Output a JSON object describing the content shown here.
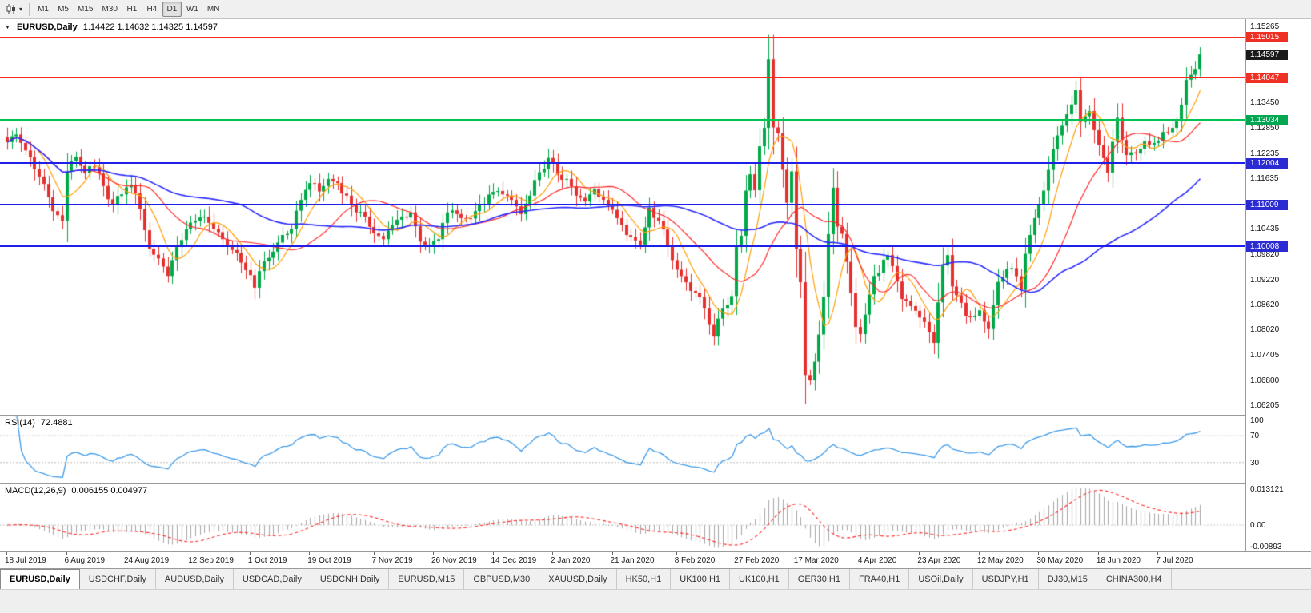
{
  "toolbar": {
    "chart_type_icon": "candlestick-chart",
    "dropdown_icon": "▾",
    "timeframes": [
      "M1",
      "M5",
      "M15",
      "M30",
      "H1",
      "H4",
      "D1",
      "W1",
      "MN"
    ],
    "active_timeframe": "D1"
  },
  "main_chart": {
    "collapse_icon": "▼",
    "title": {
      "symbol": "EURUSD,Daily",
      "ohlc": "1.14422 1.14632 1.14325 1.14597",
      "open": "1.14422",
      "high": "1.14632",
      "low": "1.14325",
      "close": "1.14597"
    },
    "price_scale": {
      "min": 1.0598,
      "max": 1.1544,
      "labels": [
        "1.15265",
        "1.13450",
        "1.12850",
        "1.12235",
        "1.11635",
        "1.10435",
        "1.09820",
        "1.09220",
        "1.08620",
        "1.08020",
        "1.07405",
        "1.06800",
        "1.06205"
      ],
      "badges": [
        {
          "value": "1.15015",
          "price": 1.15015,
          "color": "#ee3124"
        },
        {
          "value": "1.14597",
          "price": 1.14597,
          "color": "#1a1a1a"
        },
        {
          "value": "1.14047",
          "price": 1.14047,
          "color": "#ee3124"
        },
        {
          "value": "1.13034",
          "price": 1.13034,
          "color": "#00a651"
        },
        {
          "value": "1.12004",
          "price": 1.12004,
          "color": "#2b2bd4"
        },
        {
          "value": "1.11009",
          "price": 1.11009,
          "color": "#2b2bd4"
        },
        {
          "value": "1.10008",
          "price": 1.10008,
          "color": "#2b2bd4"
        }
      ]
    },
    "hlines": [
      {
        "price": 1.15015,
        "color": "#ff2b1e",
        "thickness": 1
      },
      {
        "price": 1.14047,
        "color": "#ff2b1e",
        "thickness": 2
      },
      {
        "price": 1.13034,
        "color": "#00c353",
        "thickness": 2
      },
      {
        "price": 1.12004,
        "color": "#1f1fe8",
        "thickness": 2
      },
      {
        "price": 1.11009,
        "color": "#1f1fe8",
        "thickness": 2
      },
      {
        "price": 1.10008,
        "color": "#1f1fe8",
        "thickness": 2
      }
    ]
  },
  "chart_data": {
    "type": "candlestick",
    "symbol": "EURUSD",
    "timeframe": "Daily",
    "bars": 261,
    "up_color": "#00a847",
    "down_color": "#e53030",
    "close_anchors": [
      [
        0,
        1.125
      ],
      [
        2,
        1.1268
      ],
      [
        4,
        1.123
      ],
      [
        6,
        1.1185
      ],
      [
        8,
        1.115
      ],
      [
        10,
        1.1085
      ],
      [
        12,
        1.1062
      ],
      [
        13,
        1.118
      ],
      [
        15,
        1.1215
      ],
      [
        17,
        1.1175
      ],
      [
        19,
        1.119
      ],
      [
        21,
        1.1145
      ],
      [
        23,
        1.11
      ],
      [
        25,
        1.1125
      ],
      [
        27,
        1.1148
      ],
      [
        29,
        1.109
      ],
      [
        31,
        1.0995
      ],
      [
        33,
        1.0972
      ],
      [
        35,
        1.093
      ],
      [
        37,
        1.1
      ],
      [
        39,
        1.1042
      ],
      [
        41,
        1.1062
      ],
      [
        43,
        1.1072
      ],
      [
        45,
        1.1042
      ],
      [
        47,
        1.1018
      ],
      [
        49,
        1.0992
      ],
      [
        51,
        1.0962
      ],
      [
        53,
        1.0932
      ],
      [
        54,
        1.0902
      ],
      [
        56,
        1.0965
      ],
      [
        58,
        1.0988
      ],
      [
        60,
        1.1028
      ],
      [
        62,
        1.1042
      ],
      [
        64,
        1.1112
      ],
      [
        66,
        1.1152
      ],
      [
        68,
        1.1132
      ],
      [
        70,
        1.1162
      ],
      [
        72,
        1.1152
      ],
      [
        74,
        1.1122
      ],
      [
        76,
        1.1082
      ],
      [
        78,
        1.1072
      ],
      [
        80,
        1.1032
      ],
      [
        82,
        1.1018
      ],
      [
        84,
        1.1052
      ],
      [
        86,
        1.1072
      ],
      [
        88,
        1.1082
      ],
      [
        90,
        1.1012
      ],
      [
        92,
        1.1005
      ],
      [
        94,
        1.1018
      ],
      [
        96,
        1.1082
      ],
      [
        98,
        1.1078
      ],
      [
        100,
        1.1068
      ],
      [
        102,
        1.1085
      ],
      [
        104,
        1.1102
      ],
      [
        106,
        1.1131
      ],
      [
        108,
        1.1125
      ],
      [
        110,
        1.1112
      ],
      [
        112,
        1.1078
      ],
      [
        114,
        1.1122
      ],
      [
        116,
        1.1178
      ],
      [
        118,
        1.1212
      ],
      [
        120,
        1.1172
      ],
      [
        122,
        1.1162
      ],
      [
        124,
        1.1122
      ],
      [
        126,
        1.1108
      ],
      [
        128,
        1.1138
      ],
      [
        130,
        1.1112
      ],
      [
        132,
        1.1088
      ],
      [
        134,
        1.1052
      ],
      [
        136,
        1.1023
      ],
      [
        138,
        1.1005
      ],
      [
        140,
        1.1093
      ],
      [
        142,
        1.1062
      ],
      [
        144,
        1.1002
      ],
      [
        146,
        1.0945
      ],
      [
        148,
        1.0915
      ],
      [
        150,
        1.089
      ],
      [
        152,
        1.0852
      ],
      [
        154,
        1.0785
      ],
      [
        156,
        1.0852
      ],
      [
        158,
        1.0882
      ],
      [
        159,
        1.1
      ],
      [
        160,
        1.1026
      ],
      [
        161,
        1.1134
      ],
      [
        162,
        1.1173
      ],
      [
        163,
        1.1135
      ],
      [
        164,
        1.124
      ],
      [
        165,
        1.1284
      ],
      [
        166,
        1.1448
      ],
      [
        167,
        1.1285
      ],
      [
        168,
        1.1271
      ],
      [
        169,
        1.1184
      ],
      [
        170,
        1.1105
      ],
      [
        171,
        1.118
      ],
      [
        172,
        1.0995
      ],
      [
        173,
        1.0915
      ],
      [
        174,
        1.0693
      ],
      [
        175,
        1.068
      ],
      [
        176,
        1.0725
      ],
      [
        177,
        1.079
      ],
      [
        178,
        1.088
      ],
      [
        179,
        1.103
      ],
      [
        180,
        1.1141
      ],
      [
        181,
        1.1048
      ],
      [
        182,
        1.1031
      ],
      [
        183,
        1.0964
      ],
      [
        185,
        1.0808
      ],
      [
        186,
        1.0791
      ],
      [
        189,
        1.093
      ],
      [
        192,
        1.098
      ],
      [
        195,
        1.0875
      ],
      [
        197,
        1.0858
      ],
      [
        200,
        1.082
      ],
      [
        202,
        1.077
      ],
      [
        204,
        1.0955
      ],
      [
        205,
        1.098
      ],
      [
        206,
        1.0905
      ],
      [
        209,
        1.0834
      ],
      [
        212,
        1.0848
      ],
      [
        214,
        1.0803
      ],
      [
        216,
        1.0916
      ],
      [
        219,
        1.0949
      ],
      [
        221,
        1.0897
      ],
      [
        222,
        1.0983
      ],
      [
        225,
        1.1101
      ],
      [
        226,
        1.1134
      ],
      [
        228,
        1.1233
      ],
      [
        230,
        1.1289
      ],
      [
        232,
        1.134
      ],
      [
        233,
        1.1374
      ],
      [
        234,
        1.1298
      ],
      [
        236,
        1.1324
      ],
      [
        238,
        1.1243
      ],
      [
        240,
        1.1177
      ],
      [
        242,
        1.1308
      ],
      [
        244,
        1.1219
      ],
      [
        247,
        1.1234
      ],
      [
        248,
        1.1252
      ],
      [
        250,
        1.1248
      ],
      [
        252,
        1.1274
      ],
      [
        254,
        1.1284
      ],
      [
        255,
        1.13
      ],
      [
        257,
        1.1399
      ],
      [
        258,
        1.1411
      ],
      [
        259,
        1.1425
      ],
      [
        260,
        1.14597
      ]
    ],
    "moving_averages": [
      {
        "name": "ma-fast",
        "period": 7,
        "color": "#ff9d00"
      },
      {
        "name": "ma-medium",
        "period": 19,
        "color": "#ff2a2a"
      },
      {
        "name": "ma-slow",
        "period": 52,
        "color": "#2929ff"
      }
    ],
    "x_labels": [
      {
        "bar": 0,
        "label": "18 Jul 2019"
      },
      {
        "bar": 13,
        "label": "6 Aug 2019"
      },
      {
        "bar": 26,
        "label": "24 Aug 2019"
      },
      {
        "bar": 40,
        "label": "12 Sep 2019"
      },
      {
        "bar": 53,
        "label": "1 Oct 2019"
      },
      {
        "bar": 66,
        "label": "19 Oct 2019"
      },
      {
        "bar": 80,
        "label": "7 Nov 2019"
      },
      {
        "bar": 93,
        "label": "26 Nov 2019"
      },
      {
        "bar": 106,
        "label": "14 Dec 2019"
      },
      {
        "bar": 119,
        "label": "2 Jan 2020"
      },
      {
        "bar": 132,
        "label": "21 Jan 2020"
      },
      {
        "bar": 146,
        "label": "8 Feb 2020"
      },
      {
        "bar": 159,
        "label": "27 Feb 2020"
      },
      {
        "bar": 172,
        "label": "17 Mar 2020"
      },
      {
        "bar": 186,
        "label": "4 Apr 2020"
      },
      {
        "bar": 199,
        "label": "23 Apr 2020"
      },
      {
        "bar": 212,
        "label": "12 May 2020"
      },
      {
        "bar": 225,
        "label": "30 May 2020"
      },
      {
        "bar": 238,
        "label": "18 Jun 2020"
      },
      {
        "bar": 251,
        "label": "7 Jul 2020"
      }
    ]
  },
  "rsi_panel": {
    "name": "RSI(14)",
    "value": "72.4881",
    "period": 14,
    "levels": [
      70,
      30
    ],
    "scale_labels": [
      "100",
      "70",
      "30"
    ],
    "line_color": "#3d9ae8"
  },
  "macd_panel": {
    "name": "MACD(12,26,9)",
    "values": "0.006155 0.004977",
    "value_main": "0.006155",
    "value_signal": "0.004977",
    "fast": 12,
    "slow": 26,
    "signal": 9,
    "histogram_color": "#a6a6a6",
    "signal_color": "#ff2a2a",
    "scale_top": "0.013121",
    "scale_zero": "0.00",
    "scale_bottom": "-0.00893"
  },
  "tabs": {
    "active": "EURUSD,Daily",
    "items": [
      "EURUSD,Daily",
      "USDCHF,Daily",
      "AUDUSD,Daily",
      "USDCAD,Daily",
      "USDCNH,Daily",
      "EURUSD,M15",
      "GBPUSD,M30",
      "XAUUSD,Daily",
      "HK50,H1",
      "UK100,H1",
      "UK100,H1",
      "GER30,H1",
      "FRA40,H1",
      "USOil,Daily",
      "USDJPY,H1",
      "DJ30,M15",
      "CHINA300,H4"
    ]
  }
}
